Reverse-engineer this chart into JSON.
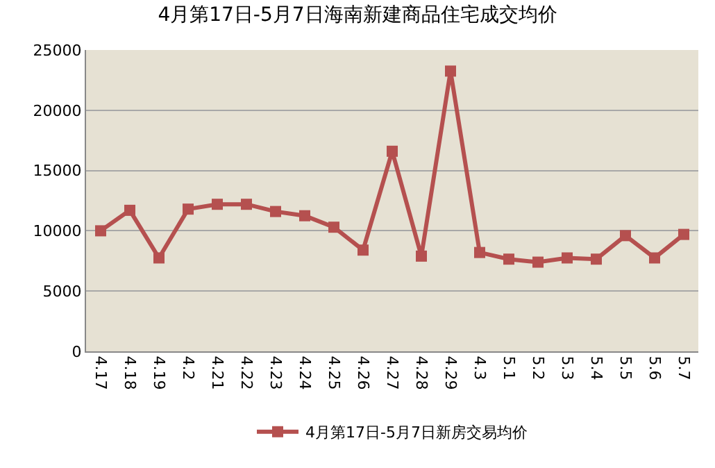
{
  "chart_data": {
    "type": "line",
    "title": "4月第17日-5月7日海南新建商品住宅成交均价",
    "categories": [
      "4.17",
      "4.18",
      "4.19",
      "4.2",
      "4.21",
      "4.22",
      "4.23",
      "4.24",
      "4.25",
      "4.26",
      "4.27",
      "4.28",
      "4.29",
      "4.3",
      "5.1",
      "5.2",
      "5.3",
      "5.4",
      "5.5",
      "5.6",
      "5.7"
    ],
    "series": [
      {
        "name": "4月第17日-5月7日新房交易均价",
        "color": "#b5504f",
        "values": [
          10000,
          11700,
          7750,
          11800,
          12200,
          12200,
          11600,
          11250,
          10300,
          8400,
          16600,
          7900,
          23250,
          8200,
          7650,
          7400,
          7750,
          7650,
          9600,
          7750,
          9700
        ]
      }
    ],
    "ylim": [
      0,
      25000
    ],
    "yticks": [
      0,
      5000,
      10000,
      15000,
      20000,
      25000
    ],
    "grid": "y",
    "legend": "bottom",
    "marker": "square",
    "line_style": "solid"
  }
}
